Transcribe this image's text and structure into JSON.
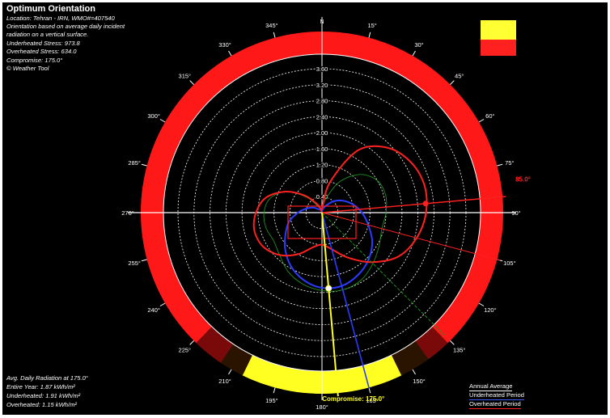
{
  "header": {
    "title": "Optimum Orientation",
    "lines": [
      "Location: Tehran - IRN, WMO#=407540",
      "Orientation based on average daily incident",
      "radiation on a vertical surface.",
      "Underheated Stress: 973.8",
      "Overheated Stress: 634.0",
      "Compromise: 175.0°",
      "© Weather Tool"
    ]
  },
  "stats": {
    "avg_label": "Avg. Daily Radiation at 175.0°",
    "entire_year": "Entire Year: 1.87 kWh/m²",
    "underheated": "Underheated: 1.91 kWh/m²",
    "overheated": "Overheated: 1.15 kWh/m²"
  },
  "legend": {
    "swatch_text": "...",
    "annual": "Annual Average",
    "underheated": "Underheated Period",
    "overheated": "Overheated Period"
  },
  "colors": {
    "background": "#000000",
    "grid": "#ffffff",
    "annual": "#1f8f1f",
    "underheated": "#2a3cff",
    "overheated": "#ff2020",
    "ring_overheated": "#ff1818",
    "ring_underheated": "#ffff22"
  },
  "chart_data": {
    "type": "polar",
    "title": "Optimum Orientation",
    "north_label": "N",
    "radial_unit": "kWh/m²",
    "radial_ticks": [
      "0.40",
      "0.80",
      "1.20",
      "1.60",
      "2.00",
      "2.40",
      "2.80",
      "3.20",
      "3.60"
    ],
    "rlim": [
      0,
      3.6
    ],
    "angle_ticks": [
      "15°",
      "30°",
      "45°",
      "60°",
      "75°",
      "90°",
      "105°",
      "120°",
      "135°",
      "150°",
      "165°",
      "180°",
      "195°",
      "210°",
      "225°",
      "240°",
      "255°",
      "270°",
      "285°",
      "300°",
      "315°",
      "330°",
      "345°"
    ],
    "compromise": {
      "angle": 175.0,
      "label": "Compromise: 175.0°"
    },
    "best_overheated": {
      "angle": 85.0,
      "label": "85.0°"
    },
    "series": [
      {
        "name": "Annual Average",
        "color": "#1f8f1f",
        "angles": [
          0,
          15,
          30,
          45,
          60,
          75,
          90,
          105,
          120,
          135,
          150,
          165,
          180,
          195,
          210,
          225,
          240,
          255,
          270,
          285,
          300,
          315,
          330,
          345
        ],
        "values": [
          0.05,
          0.35,
          0.9,
          1.35,
          1.6,
          1.65,
          1.6,
          1.55,
          1.65,
          1.8,
          1.95,
          2.0,
          1.95,
          1.85,
          1.7,
          1.5,
          1.4,
          1.45,
          1.45,
          1.35,
          1.05,
          0.55,
          0.15,
          0.05
        ]
      },
      {
        "name": "Underheated Period",
        "color": "#2a3cff",
        "angles": [
          0,
          15,
          30,
          45,
          60,
          75,
          90,
          105,
          120,
          135,
          150,
          165,
          180,
          195,
          210,
          225,
          240,
          255,
          270,
          285,
          300,
          315,
          330,
          345
        ],
        "values": [
          0.05,
          0.1,
          0.2,
          0.4,
          0.6,
          0.8,
          1.0,
          1.2,
          1.45,
          1.65,
          1.8,
          1.9,
          1.88,
          1.75,
          1.55,
          1.3,
          1.05,
          0.85,
          0.6,
          0.4,
          0.25,
          0.12,
          0.08,
          0.05
        ]
      },
      {
        "name": "Overheated Period",
        "color": "#ff2020",
        "angles": [
          0,
          15,
          30,
          45,
          60,
          75,
          90,
          105,
          120,
          135,
          150,
          165,
          180,
          195,
          210,
          225,
          240,
          255,
          270,
          285,
          300,
          315,
          330,
          345
        ],
        "values": [
          0.1,
          0.8,
          1.8,
          2.3,
          2.55,
          2.65,
          2.6,
          2.45,
          2.2,
          1.75,
          1.3,
          0.95,
          0.8,
          0.9,
          1.2,
          1.5,
          1.7,
          1.75,
          1.65,
          1.45,
          1.05,
          0.6,
          0.25,
          0.1
        ]
      }
    ],
    "ring": {
      "description": "Outer ring: overheated/underheated stress by orientation",
      "underheated_arc_deg": [
        155,
        205
      ]
    }
  }
}
